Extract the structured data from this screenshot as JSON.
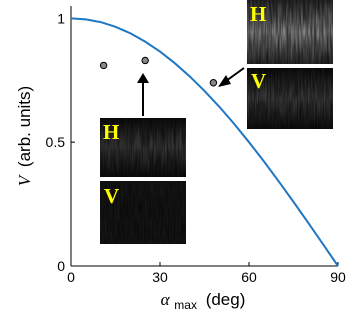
{
  "chart_data": {
    "type": "line",
    "title": "",
    "xlabel_symbol": "α",
    "xlabel_subscript": "max",
    "xlabel_unit": "(deg)",
    "ylabel_symbol": "V",
    "ylabel_unit": "(arb. units)",
    "xlim": [
      0,
      90
    ],
    "ylim": [
      0,
      1.05
    ],
    "xticks": [
      "0",
      "30",
      "60",
      "90"
    ],
    "yticks": [
      "0",
      "0.5",
      "1"
    ],
    "grid": false,
    "series": [
      {
        "kind": "line",
        "color": "#1f77c4",
        "x": [
          0,
          5,
          10,
          15,
          20,
          25,
          30,
          35,
          40,
          45,
          50,
          55,
          60,
          65,
          70,
          75,
          80,
          85,
          90
        ],
        "y": [
          1.0,
          0.996,
          0.985,
          0.966,
          0.94,
          0.906,
          0.866,
          0.819,
          0.766,
          0.707,
          0.643,
          0.574,
          0.5,
          0.423,
          0.342,
          0.259,
          0.174,
          0.087,
          0.0
        ]
      },
      {
        "kind": "scatter",
        "color": "#888888",
        "x": [
          11,
          25,
          48
        ],
        "y": [
          0.81,
          0.83,
          0.74
        ]
      }
    ],
    "insets": [
      {
        "points_to": [
          25,
          0.83
        ],
        "h_label": "H",
        "v_label": "V",
        "h_brightness": "medium",
        "v_brightness": "dark"
      },
      {
        "points_to": [
          48,
          0.74
        ],
        "h_label": "H",
        "v_label": "V",
        "h_brightness": "bright",
        "v_brightness": "medium"
      }
    ]
  }
}
